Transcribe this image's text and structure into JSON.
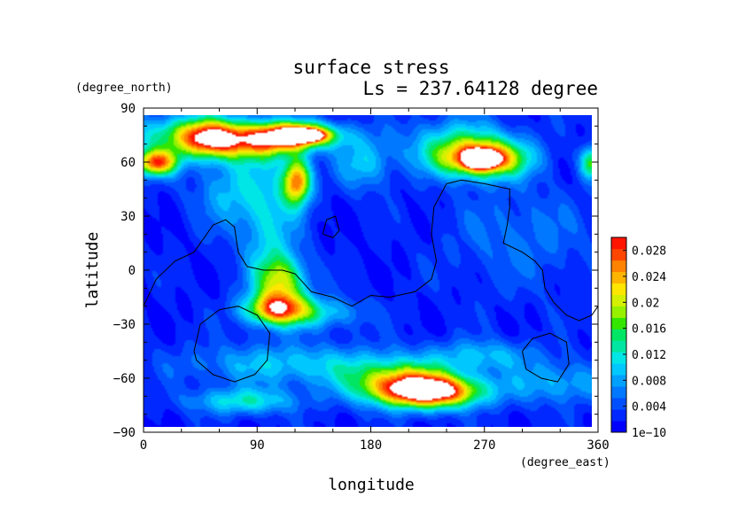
{
  "chart_data": {
    "type": "heatmap",
    "title": "surface stress",
    "subtitle": "Ls = 237.64128 degree",
    "xlabel": "longitude",
    "ylabel": "latitude",
    "x_unit": "(degree_east)",
    "y_unit": "(degree_north)",
    "xlim": [
      0,
      360
    ],
    "ylim": [
      -90,
      90
    ],
    "x_ticks": [
      "0",
      "90",
      "180",
      "270",
      "360"
    ],
    "y_ticks": [
      "90",
      "60",
      "30",
      "0",
      "−30",
      "−60",
      "−90"
    ],
    "colorbar": {
      "min": 1e-10,
      "max": 0.03,
      "tick_values": [
        0.0,
        0.004,
        0.008,
        0.012,
        0.016,
        0.02,
        0.024,
        0.028
      ],
      "tick_labels": [
        "1e−10",
        "0.004",
        "0.008",
        "0.012",
        "0.016",
        "0.02",
        "0.024",
        "0.028"
      ],
      "colors": [
        "#0000ff",
        "#0028ff",
        "#0050ff",
        "#0078ff",
        "#00a0ff",
        "#00c8ff",
        "#00e6e6",
        "#00e6a0",
        "#00e664",
        "#32e600",
        "#96f000",
        "#d2f000",
        "#ffe600",
        "#ffb400",
        "#ff8200",
        "#ff4600",
        "#ff1400"
      ]
    },
    "background_level": 0.002,
    "features": [
      {
        "lon": 30,
        "lat": 75,
        "value": 0.012,
        "slon": 30,
        "slat": 8
      },
      {
        "lon": 55,
        "lat": 73,
        "value": 0.022,
        "slon": 18,
        "slat": 7
      },
      {
        "lon": 95,
        "lat": 72,
        "value": 0.018,
        "slon": 20,
        "slat": 7
      },
      {
        "lon": 125,
        "lat": 75,
        "value": 0.026,
        "slon": 22,
        "slat": 5
      },
      {
        "lon": 126,
        "lat": 75,
        "value": 0.034,
        "slon": 10,
        "slat": 2
      },
      {
        "lon": 10,
        "lat": 60,
        "value": 0.024,
        "slon": 12,
        "slat": 5
      },
      {
        "lon": 122,
        "lat": 50,
        "value": 0.024,
        "slon": 8,
        "slat": 9
      },
      {
        "lon": 270,
        "lat": 62,
        "value": 0.024,
        "slon": 24,
        "slat": 7
      },
      {
        "lon": 268,
        "lat": 62,
        "value": 0.034,
        "slon": 8,
        "slat": 3
      },
      {
        "lon": 250,
        "lat": 70,
        "value": 0.01,
        "slon": 30,
        "slat": 10
      },
      {
        "lon": 175,
        "lat": 60,
        "value": 0.008,
        "slon": 15,
        "slat": 10
      },
      {
        "lon": 100,
        "lat": 25,
        "value": 0.008,
        "slon": 15,
        "slat": 25
      },
      {
        "lon": 70,
        "lat": 45,
        "value": 0.007,
        "slon": 20,
        "slat": 15
      },
      {
        "lon": 110,
        "lat": -5,
        "value": 0.016,
        "slon": 14,
        "slat": 10
      },
      {
        "lon": 105,
        "lat": -20,
        "value": 0.02,
        "slon": 18,
        "slat": 6
      },
      {
        "lon": 140,
        "lat": -22,
        "value": 0.008,
        "slon": 25,
        "slat": 6
      },
      {
        "lon": 230,
        "lat": -65,
        "value": 0.026,
        "slon": 28,
        "slat": 6
      },
      {
        "lon": 205,
        "lat": -60,
        "value": 0.018,
        "slon": 30,
        "slat": 8
      },
      {
        "lon": 120,
        "lat": -50,
        "value": 0.008,
        "slon": 60,
        "slat": 8
      },
      {
        "lon": 80,
        "lat": -70,
        "value": 0.01,
        "slon": 30,
        "slat": 5
      },
      {
        "lon": 270,
        "lat": -45,
        "value": 0.007,
        "slon": 30,
        "slat": 6
      },
      {
        "lon": 330,
        "lat": -60,
        "value": 0.007,
        "slon": 30,
        "slat": 8
      },
      {
        "lon": 300,
        "lat": 20,
        "value": 0.004,
        "slon": 40,
        "slat": 20
      },
      {
        "lon": 355,
        "lat": 60,
        "value": 0.014,
        "slon": 6,
        "slat": 6
      }
    ],
    "contour_lines": [
      [
        [
          0,
          -20
        ],
        [
          10,
          -5
        ],
        [
          25,
          5
        ],
        [
          40,
          10
        ],
        [
          55,
          25
        ],
        [
          65,
          28
        ],
        [
          72,
          24
        ],
        [
          75,
          10
        ],
        [
          82,
          2
        ],
        [
          95,
          0
        ],
        [
          110,
          0
        ],
        [
          120,
          -2
        ],
        [
          133,
          -12
        ],
        [
          150,
          -15
        ],
        [
          165,
          -20
        ],
        [
          180,
          -14
        ],
        [
          195,
          -15
        ],
        [
          215,
          -12
        ],
        [
          228,
          -5
        ],
        [
          232,
          5
        ],
        [
          228,
          20
        ],
        [
          230,
          35
        ],
        [
          240,
          48
        ],
        [
          252,
          50
        ],
        [
          270,
          48
        ],
        [
          290,
          45
        ],
        [
          290,
          35
        ],
        [
          288,
          25
        ],
        [
          285,
          15
        ],
        [
          300,
          10
        ],
        [
          310,
          5
        ],
        [
          316,
          0
        ],
        [
          318,
          -10
        ],
        [
          325,
          -18
        ],
        [
          335,
          -25
        ],
        [
          345,
          -28
        ],
        [
          355,
          -25
        ],
        [
          360,
          -20
        ]
      ],
      [
        [
          142,
          20
        ],
        [
          150,
          18
        ],
        [
          155,
          22
        ],
        [
          152,
          30
        ],
        [
          145,
          28
        ],
        [
          142,
          20
        ]
      ],
      [
        [
          40,
          -45
        ],
        [
          45,
          -30
        ],
        [
          60,
          -22
        ],
        [
          75,
          -20
        ],
        [
          90,
          -25
        ],
        [
          100,
          -35
        ],
        [
          98,
          -50
        ],
        [
          88,
          -58
        ],
        [
          72,
          -62
        ],
        [
          55,
          -58
        ],
        [
          42,
          -50
        ],
        [
          40,
          -45
        ]
      ],
      [
        [
          300,
          -45
        ],
        [
          308,
          -38
        ],
        [
          322,
          -35
        ],
        [
          335,
          -40
        ],
        [
          337,
          -52
        ],
        [
          328,
          -62
        ],
        [
          315,
          -60
        ],
        [
          303,
          -55
        ],
        [
          300,
          -45
        ]
      ]
    ]
  }
}
